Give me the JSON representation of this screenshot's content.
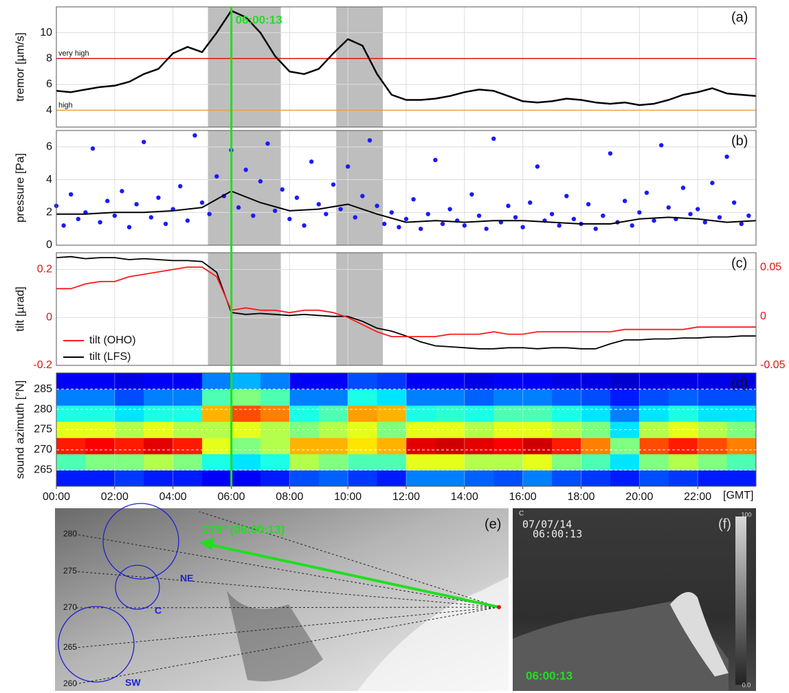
{
  "chart_data": [
    {
      "type": "line",
      "panel_label": "(a)",
      "ylabel": "tremor [µm/s]",
      "xlim": [
        0,
        24
      ],
      "ylim": [
        2.7,
        12
      ],
      "yticks": [
        4,
        6,
        8,
        10
      ],
      "grid": true,
      "color": "#000000",
      "x": [
        0,
        0.5,
        1,
        1.5,
        2,
        2.5,
        3,
        3.5,
        4,
        4.5,
        5,
        5.5,
        6,
        6.5,
        7,
        7.5,
        8,
        8.5,
        9,
        9.5,
        10,
        10.5,
        11,
        11.5,
        12,
        12.5,
        13,
        13.5,
        14,
        14.5,
        15,
        15.5,
        16,
        16.5,
        17,
        17.5,
        18,
        18.5,
        19,
        19.5,
        20,
        20.5,
        21,
        21.5,
        22,
        22.5,
        23,
        23.5,
        24
      ],
      "values": [
        5.5,
        5.4,
        5.6,
        5.8,
        5.9,
        6.2,
        6.8,
        7.2,
        8.4,
        8.9,
        8.5,
        10.0,
        11.7,
        11.2,
        10.0,
        8.2,
        7.0,
        6.8,
        7.2,
        8.4,
        9.5,
        9.0,
        6.8,
        5.2,
        4.8,
        4.8,
        4.9,
        5.1,
        5.4,
        5.6,
        5.5,
        5.1,
        4.7,
        4.6,
        4.7,
        4.9,
        4.8,
        4.6,
        4.5,
        4.6,
        4.4,
        4.5,
        4.8,
        5.2,
        5.4,
        5.7,
        5.3,
        5.2,
        5.1
      ],
      "thresholds": [
        {
          "value": 8,
          "label": "very high",
          "color": "#e81010"
        },
        {
          "value": 4,
          "label": "high",
          "color": "#f0a040"
        }
      ],
      "shaded": [
        [
          5.2,
          7.7
        ],
        [
          9.6,
          11.2
        ]
      ],
      "marker": {
        "x": 6.0036,
        "label": "06:00:13",
        "color": "#22dd22"
      }
    },
    {
      "type": "scatter",
      "panel_label": "(b)",
      "ylabel": "pressure [Pa]",
      "xlim": [
        0,
        24
      ],
      "ylim": [
        0,
        7
      ],
      "yticks": [
        0,
        2,
        4,
        6
      ],
      "grid": true,
      "series": [
        {
          "color": "#1a1aff",
          "x": [
            0,
            0.25,
            0.5,
            0.75,
            1,
            1.25,
            1.5,
            1.75,
            2,
            2.25,
            2.5,
            2.75,
            3,
            3.25,
            3.5,
            3.75,
            4,
            4.25,
            4.5,
            4.75,
            5,
            5.25,
            5.5,
            5.75,
            6,
            6.25,
            6.5,
            6.75,
            7,
            7.25,
            7.5,
            7.75,
            8,
            8.25,
            8.5,
            8.75,
            9,
            9.25,
            9.5,
            9.75,
            10,
            10.25,
            10.5,
            10.75,
            11,
            11.25,
            11.5,
            11.75,
            12,
            12.25,
            12.5,
            12.75,
            13,
            13.25,
            13.5,
            13.75,
            14,
            14.25,
            14.5,
            14.75,
            15,
            15.25,
            15.5,
            15.75,
            16,
            16.25,
            16.5,
            16.75,
            17,
            17.25,
            17.5,
            17.75,
            18,
            18.25,
            18.5,
            18.75,
            19,
            19.25,
            19.5,
            19.75,
            20,
            20.25,
            20.5,
            20.75,
            21,
            21.25,
            21.5,
            21.75,
            22,
            22.25,
            22.5,
            22.75,
            23,
            23.25,
            23.5,
            23.75
          ],
          "values": [
            2.4,
            1.2,
            3.1,
            1.6,
            2.0,
            5.9,
            1.4,
            2.7,
            1.8,
            3.3,
            1.1,
            2.5,
            6.3,
            1.7,
            2.9,
            1.3,
            2.2,
            3.6,
            1.5,
            6.7,
            2.6,
            1.9,
            4.2,
            3.0,
            5.8,
            2.3,
            4.6,
            1.8,
            3.9,
            6.2,
            2.1,
            3.4,
            1.6,
            2.9,
            1.2,
            5.1,
            2.5,
            1.9,
            3.7,
            2.2,
            4.8,
            1.7,
            3.0,
            6.4,
            2.4,
            1.3,
            2.0,
            1.1,
            1.6,
            2.8,
            1.0,
            1.9,
            5.2,
            1.3,
            2.2,
            1.5,
            1.2,
            3.1,
            1.8,
            1.0,
            6.5,
            1.4,
            2.4,
            1.7,
            1.1,
            2.6,
            4.8,
            1.5,
            1.9,
            1.2,
            3.0,
            1.6,
            1.3,
            2.5,
            1.0,
            1.8,
            5.6,
            1.4,
            2.7,
            1.2,
            2.0,
            3.2,
            1.5,
            6.1,
            2.3,
            1.6,
            3.5,
            1.9,
            2.2,
            1.4,
            3.8,
            1.7,
            5.4,
            2.6,
            1.3,
            1.8
          ]
        },
        {
          "color": "#000000",
          "line": true,
          "x": [
            0,
            1,
            2,
            3,
            4,
            5,
            6,
            7,
            8,
            9,
            10,
            11,
            12,
            13,
            14,
            15,
            16,
            17,
            18,
            19,
            20,
            21,
            22,
            23,
            24
          ],
          "values": [
            1.9,
            1.9,
            2.0,
            2.0,
            2.1,
            2.3,
            3.3,
            2.6,
            2.1,
            2.2,
            2.5,
            1.9,
            1.4,
            1.5,
            1.4,
            1.5,
            1.5,
            1.4,
            1.3,
            1.3,
            1.6,
            1.7,
            1.6,
            1.4,
            1.5
          ]
        }
      ]
    },
    {
      "type": "line",
      "panel_label": "(c)",
      "ylabel": "tilt [µrad]",
      "xlim": [
        0,
        24
      ],
      "ylim": [
        -0.2,
        0.27
      ],
      "yticks": [
        -0.2,
        0,
        0.2
      ],
      "y2lim": [
        -0.05,
        0.065
      ],
      "y2ticks": [
        -0.05,
        0,
        0.05
      ],
      "grid": true,
      "tick_color": "#e81010",
      "legend": "lower left",
      "x": [
        0,
        0.5,
        1,
        1.5,
        2,
        2.5,
        3,
        3.5,
        4,
        4.5,
        5,
        5.5,
        6,
        6.5,
        7,
        7.5,
        8,
        8.5,
        9,
        9.5,
        10,
        10.5,
        11,
        11.5,
        12,
        12.5,
        13,
        13.5,
        14,
        14.5,
        15,
        15.5,
        16,
        16.5,
        17,
        17.5,
        18,
        18.5,
        19,
        19.5,
        20,
        20.5,
        21,
        21.5,
        22,
        22.5,
        23,
        23.5,
        24
      ],
      "series": [
        {
          "name": "tilt (OHO)",
          "color": "#ff1a1a",
          "values": [
            0.12,
            0.12,
            0.14,
            0.15,
            0.15,
            0.17,
            0.18,
            0.19,
            0.2,
            0.21,
            0.21,
            0.17,
            0.03,
            0.04,
            0.03,
            0.03,
            0.02,
            0.03,
            0.03,
            0.02,
            0.0,
            -0.03,
            -0.06,
            -0.08,
            -0.08,
            -0.08,
            -0.08,
            -0.07,
            -0.07,
            -0.07,
            -0.06,
            -0.07,
            -0.07,
            -0.06,
            -0.06,
            -0.06,
            -0.06,
            -0.06,
            -0.06,
            -0.05,
            -0.05,
            -0.05,
            -0.05,
            -0.05,
            -0.04,
            -0.04,
            -0.04,
            -0.04,
            -0.04
          ]
        },
        {
          "name": "tilt (LFS)",
          "color": "#000000",
          "axis": "y2",
          "values": [
            0.06,
            0.061,
            0.059,
            0.06,
            0.06,
            0.058,
            0.059,
            0.058,
            0.057,
            0.057,
            0.056,
            0.045,
            0.004,
            0.002,
            0.003,
            0.002,
            0.001,
            0.002,
            0.001,
            0.0,
            0.0,
            -0.005,
            -0.012,
            -0.015,
            -0.02,
            -0.026,
            -0.03,
            -0.031,
            -0.032,
            -0.033,
            -0.033,
            -0.032,
            -0.032,
            -0.033,
            -0.032,
            -0.032,
            -0.033,
            -0.033,
            -0.028,
            -0.024,
            -0.024,
            -0.023,
            -0.023,
            -0.022,
            -0.022,
            -0.021,
            -0.021,
            -0.02,
            -0.02
          ]
        }
      ]
    },
    {
      "type": "heatmap",
      "panel_label": "(d)",
      "ylabel": "sound azimuth [°N]",
      "xlabel": "[GMT]",
      "xlim": [
        0,
        24
      ],
      "ylim": [
        261,
        289
      ],
      "yticks": [
        265,
        270,
        275,
        280,
        285
      ],
      "grid": true,
      "xticks": [
        {
          "value": 0,
          "label": "00:00"
        },
        {
          "value": 2,
          "label": "02:00"
        },
        {
          "value": 4,
          "label": "04:00"
        },
        {
          "value": 6,
          "label": "06:00"
        },
        {
          "value": 8,
          "label": "08:00"
        },
        {
          "value": 10,
          "label": "10:00"
        },
        {
          "value": 12,
          "label": "12:00"
        },
        {
          "value": 14,
          "label": "14:00"
        },
        {
          "value": 16,
          "label": "16:00"
        },
        {
          "value": 18,
          "label": "18:00"
        },
        {
          "value": 20,
          "label": "20:00"
        },
        {
          "value": 22,
          "label": "22:00"
        }
      ],
      "xbins": [
        0,
        1,
        2,
        3,
        4,
        5,
        6,
        7,
        8,
        9,
        10,
        11,
        12,
        13,
        14,
        15,
        16,
        17,
        18,
        19,
        20,
        21,
        22,
        23,
        24
      ],
      "ybins": [
        261,
        265,
        269,
        273,
        277,
        281,
        285,
        289
      ],
      "z": [
        [
          0.15,
          0.15,
          0.18,
          0.15,
          0.15,
          0.12,
          0.12,
          0.15,
          0.2,
          0.22,
          0.18,
          0.15,
          0.25,
          0.25,
          0.22,
          0.2,
          0.25,
          0.2,
          0.18,
          0.15,
          0.2,
          0.18,
          0.15,
          0.15
        ],
        [
          0.45,
          0.5,
          0.5,
          0.55,
          0.5,
          0.4,
          0.35,
          0.4,
          0.55,
          0.5,
          0.45,
          0.45,
          0.6,
          0.6,
          0.55,
          0.55,
          0.6,
          0.5,
          0.45,
          0.35,
          0.5,
          0.55,
          0.5,
          0.45
        ],
        [
          0.85,
          0.88,
          0.85,
          0.9,
          0.85,
          0.6,
          0.5,
          0.55,
          0.7,
          0.7,
          0.65,
          0.7,
          0.9,
          0.92,
          0.9,
          0.88,
          0.92,
          0.85,
          0.75,
          0.5,
          0.8,
          0.85,
          0.8,
          0.75
        ],
        [
          0.6,
          0.6,
          0.55,
          0.6,
          0.55,
          0.55,
          0.6,
          0.55,
          0.5,
          0.55,
          0.6,
          0.5,
          0.6,
          0.6,
          0.55,
          0.6,
          0.6,
          0.55,
          0.5,
          0.35,
          0.55,
          0.6,
          0.55,
          0.5
        ],
        [
          0.4,
          0.4,
          0.35,
          0.4,
          0.4,
          0.7,
          0.8,
          0.75,
          0.4,
          0.45,
          0.72,
          0.7,
          0.4,
          0.42,
          0.4,
          0.45,
          0.45,
          0.4,
          0.35,
          0.25,
          0.35,
          0.4,
          0.35,
          0.35
        ],
        [
          0.25,
          0.25,
          0.2,
          0.25,
          0.25,
          0.45,
          0.5,
          0.45,
          0.25,
          0.25,
          0.4,
          0.35,
          0.25,
          0.25,
          0.22,
          0.25,
          0.25,
          0.22,
          0.2,
          0.15,
          0.2,
          0.22,
          0.2,
          0.2
        ],
        [
          0.12,
          0.12,
          0.1,
          0.12,
          0.12,
          0.25,
          0.3,
          0.25,
          0.12,
          0.12,
          0.2,
          0.18,
          0.12,
          0.12,
          0.1,
          0.12,
          0.12,
          0.1,
          0.1,
          0.08,
          0.1,
          0.1,
          0.1,
          0.1
        ]
      ]
    }
  ],
  "map": {
    "label": "(e)",
    "azimuth_labels": [
      "280",
      "275",
      "270",
      "265",
      "260"
    ],
    "vents": [
      "NE",
      "C",
      "SW"
    ],
    "annotation": "279°  (06:00:13)"
  },
  "camera": {
    "label": "(f)",
    "corner": "C",
    "date": "07/07/14",
    "time": "06:00:13",
    "timestamp": "06:00:13",
    "scale_max": "100",
    "scale_min": "0.0"
  }
}
